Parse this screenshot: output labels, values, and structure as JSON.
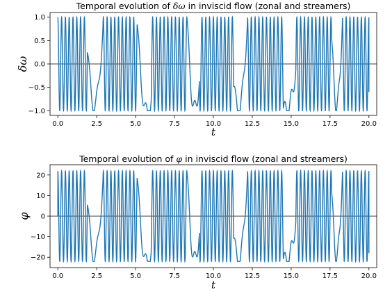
{
  "chart_data": [
    {
      "type": "line",
      "title_prefix": "Temporal evolution of ",
      "title_symbol": "δω",
      "title_suffix": " in inviscid flow (zonal and streamers)",
      "xlabel": "t",
      "ylabel": "δω",
      "xlim": [
        -0.5,
        20.5
      ],
      "ylim": [
        -1.1,
        1.1
      ],
      "xticks": [
        "0.0",
        "2.5",
        "5.0",
        "7.5",
        "10.0",
        "12.5",
        "15.0",
        "17.5",
        "20.0"
      ],
      "xtick_values": [
        0,
        2.5,
        5,
        7.5,
        10,
        12.5,
        15,
        17.5,
        20
      ],
      "yticks": [
        "1.0",
        "0.5",
        "0.0",
        "−0.5",
        "−1.0"
      ],
      "ytick_values": [
        1.0,
        0.5,
        0.0,
        -0.5,
        -1.0
      ],
      "horizontal_line": 0,
      "series": [
        {
          "color": "#1f77b4",
          "amplitude": 1.0,
          "start": 1.0,
          "end": -0.6,
          "fast_oscillation_intervals": [
            [
              0,
              1.9
            ],
            [
              2.9,
              5.1
            ],
            [
              6.0,
              8.3
            ],
            [
              9.1,
              11.3
            ],
            [
              12.2,
              14.5
            ],
            [
              15.3,
              17.6
            ],
            [
              18.3,
              20
            ]
          ],
          "slow_dip_centers": [
            2.45,
            5.5,
            8.7,
            11.75,
            14.9,
            17.9
          ]
        }
      ]
    },
    {
      "type": "line",
      "title_prefix": "Temporal evolution of ",
      "title_symbol": "φ",
      "title_suffix": " in inviscid flow (zonal and streamers)",
      "xlabel": "t",
      "ylabel": "φ",
      "xlim": [
        -0.5,
        20.5
      ],
      "ylim": [
        -25,
        25
      ],
      "xticks": [
        "0.0",
        "2.5",
        "5.0",
        "7.5",
        "10.0",
        "12.5",
        "15.0",
        "17.5",
        "20.0"
      ],
      "xtick_values": [
        0,
        2.5,
        5,
        7.5,
        10,
        12.5,
        15,
        17.5,
        20
      ],
      "yticks": [
        "20",
        "10",
        "0",
        "−10",
        "−20"
      ],
      "ytick_values": [
        20,
        10,
        0,
        -10,
        -20
      ],
      "horizontal_line": 0,
      "series": [
        {
          "color": "#1f77b4",
          "amplitude": 22,
          "start": 0,
          "end": -18,
          "fast_oscillation_intervals": [
            [
              0,
              1.9
            ],
            [
              2.9,
              5.1
            ],
            [
              6.0,
              8.3
            ],
            [
              9.1,
              11.3
            ],
            [
              12.2,
              14.5
            ],
            [
              15.3,
              17.6
            ],
            [
              18.3,
              20
            ]
          ],
          "slow_dip_centers": [
            2.45,
            5.5,
            8.7,
            11.75,
            14.9,
            17.9
          ]
        }
      ]
    }
  ]
}
